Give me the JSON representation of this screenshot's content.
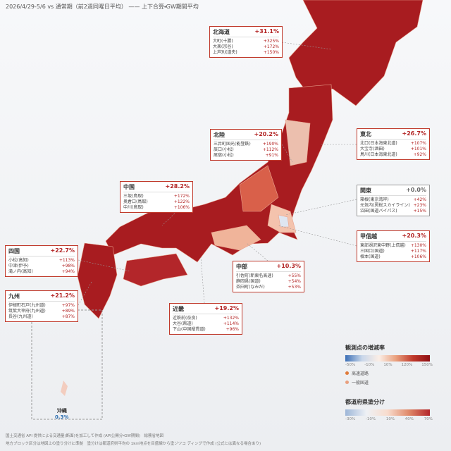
{
  "header": {
    "title": "2026/4/29-5/6 vs 通常期（前2週同曜日平均） —— 上下合算・GW期間平均"
  },
  "regions": [
    {
      "name": "北海道",
      "change": "+31.1%",
      "rows": [
        [
          "大町(十勝)",
          "+325%"
        ],
        [
          "大楽(宗谷)",
          "+172%"
        ],
        [
          "上芦別(道央)",
          "+150%"
        ]
      ]
    },
    {
      "name": "北陸",
      "change": "+20.2%",
      "rows": [
        [
          "三井町国光(能登鉄)",
          "+190%"
        ],
        [
          "辰口(小松)",
          "+112%"
        ],
        [
          "尾宿(小松)",
          "+91%"
        ]
      ]
    },
    {
      "name": "東北",
      "change": "+26.7%",
      "rows": [
        [
          "北口(日本海東北道)",
          "+107%"
        ],
        [
          "大宝寺(酒田)",
          "+101%"
        ],
        [
          "鳥川(日本海東北道)",
          "+92%"
        ]
      ]
    },
    {
      "name": "関東",
      "change": "+0.0%",
      "rows": [
        [
          "箱根(東京湾岸)",
          "+42%"
        ],
        [
          "元気内(房総スカイライン)",
          "+23%"
        ],
        [
          "沼田(国道バイパス)",
          "+15%"
        ]
      ]
    },
    {
      "name": "甲信越",
      "change": "+20.3%",
      "rows": [
        [
          "東部湖沢東中野(上信越)",
          "+130%"
        ],
        [
          "三国口(国道)",
          "+117%"
        ],
        [
          "根本(国道)",
          "+106%"
        ]
      ]
    },
    {
      "name": "中部",
      "change": "+10.3%",
      "rows": [
        [
          "引佐町(新東名高速)",
          "+55%"
        ],
        [
          "静岡県(国道)",
          "+54%"
        ],
        [
          "茶臼町(なみだ)",
          "+53%"
        ]
      ]
    },
    {
      "name": "近畿",
      "change": "+19.2%",
      "rows": [
        [
          "近鉄前(奈良)",
          "+132%"
        ],
        [
          "大谷(県道)",
          "+114%"
        ],
        [
          "下山(中国縦貫道)",
          "+96%"
        ]
      ]
    },
    {
      "name": "中国",
      "change": "+28.2%",
      "rows": [
        [
          "三坂(鳥取)",
          "+172%"
        ],
        [
          "奥倉口(鳥取)",
          "+122%"
        ],
        [
          "中川(鳥取)",
          "+106%"
        ]
      ]
    },
    {
      "name": "四国",
      "change": "+22.7%",
      "rows": [
        [
          "小松(高知)",
          "+113%"
        ],
        [
          "中津(伊予)",
          "+98%"
        ],
        [
          "滝ノ内(高知)",
          "+94%"
        ]
      ]
    },
    {
      "name": "九州",
      "change": "+21.2%",
      "rows": [
        [
          "伊根町石戸(九州道)",
          "+97%"
        ],
        [
          "筑紫大宰府(九州道)",
          "+89%"
        ],
        [
          "長谷(九州道)",
          "+87%"
        ]
      ]
    }
  ],
  "okinawa": {
    "name": "沖縄",
    "change": "0.3%"
  },
  "legend": {
    "points_title": "観測点の増減率",
    "points_ticks": [
      "-50%",
      "-10%",
      "10%",
      "120%",
      "150%"
    ],
    "highway": "高速道路",
    "national_road": "一般国道",
    "pref_title": "都道府県塗分け",
    "pref_ticks": [
      "-30%",
      "-10%",
      "10%",
      "40%",
      "70%"
    ]
  },
  "footer": {
    "line1": "国土交通省 API 提供による交通量(断面)を加工して作成 (API公開分・GW期間)　総務省地図",
    "line2": "地方ブロック区分は地図上の塗り分けに準拠　塗分けは都道府県平均の 1km地点を目盛線から塗ジツコ ディングで作成 (公式とは異なる場合あり)"
  }
}
